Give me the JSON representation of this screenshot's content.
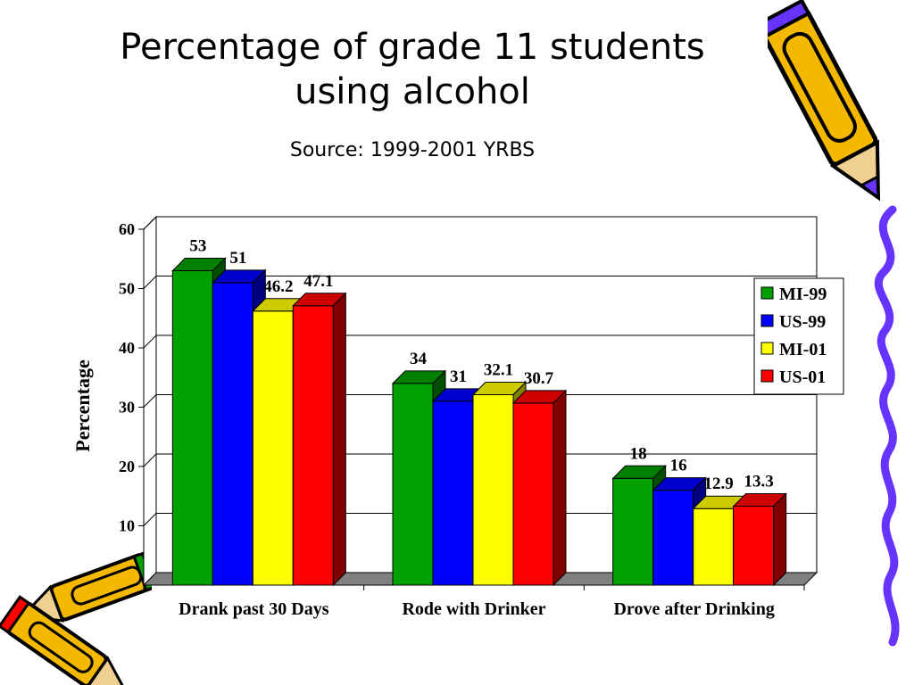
{
  "slide": {
    "title_line1": "Percentage of grade 11 students",
    "title_line2": "using  alcohol",
    "subtitle": "Source: 1999-2001 YRBS"
  },
  "chart_data": {
    "type": "bar",
    "ylabel": "Percentage",
    "ylim": [
      0,
      60
    ],
    "yticks": [
      10,
      20,
      30,
      40,
      50,
      60
    ],
    "grid": true,
    "legend_position": "right",
    "categories": [
      "Drank past 30 Days",
      "Rode with Drinker",
      "Drove after Drinking"
    ],
    "series": [
      {
        "name": "MI-99",
        "color": "#00a000",
        "values": [
          53,
          34,
          18
        ],
        "labels": [
          "53",
          "34",
          "18"
        ]
      },
      {
        "name": "US-99",
        "color": "#0000ff",
        "values": [
          51,
          31,
          16
        ],
        "labels": [
          "51",
          "31",
          "16"
        ]
      },
      {
        "name": "MI-01",
        "color": "#ffff00",
        "values": [
          46.2,
          32.1,
          12.9
        ],
        "labels": [
          "46.2",
          "32.1",
          "12.9"
        ]
      },
      {
        "name": "US-01",
        "color": "#ff0000",
        "values": [
          47.1,
          30.7,
          13.3
        ],
        "labels": [
          "47.1",
          "30.7",
          "13.3"
        ]
      }
    ]
  },
  "decorations": {
    "pencil_color": "#f5b800",
    "squiggle_color": "#6633ff",
    "pencil_icon": "pencil-icon",
    "squiggle_icon": "squiggle-border-icon"
  }
}
